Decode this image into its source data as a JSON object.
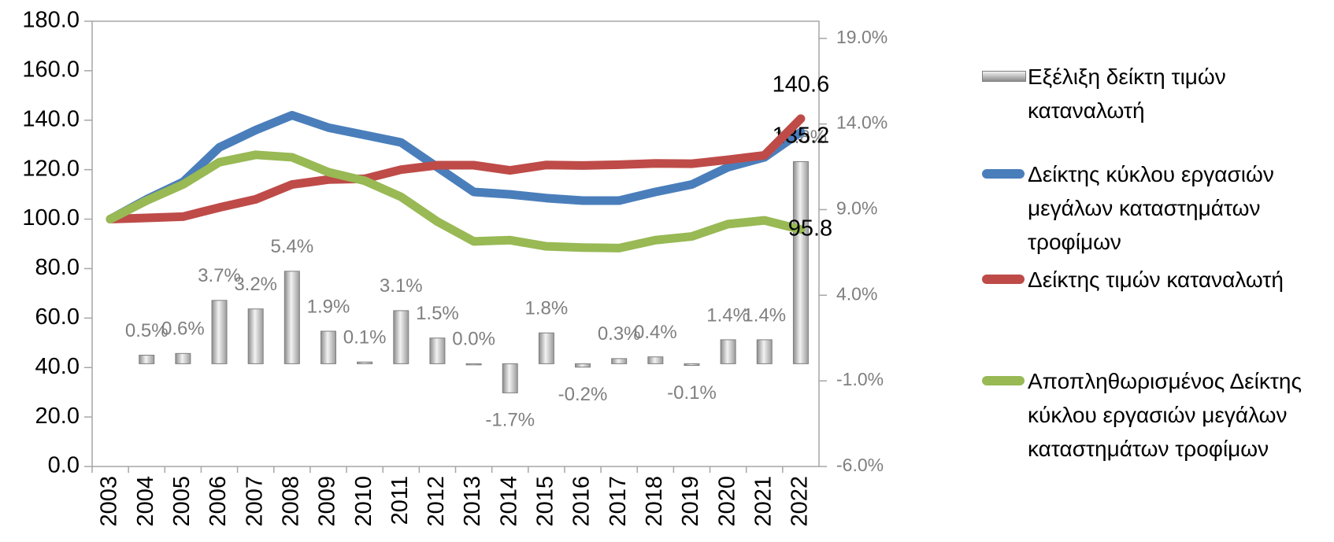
{
  "chart_data": {
    "type": "combo",
    "categories": [
      "2003",
      "2004",
      "2005",
      "2006",
      "2007",
      "2008",
      "2009",
      "2010",
      "2011",
      "2012",
      "2013",
      "2014",
      "2015",
      "2016",
      "2017",
      "2018",
      "2019",
      "2020",
      "2021",
      "2022"
    ],
    "ylim": [
      0,
      180
    ],
    "yticks": [
      {
        "value": 0,
        "label": "0.0"
      },
      {
        "value": 20,
        "label": "20.0"
      },
      {
        "value": 40,
        "label": "40.0"
      },
      {
        "value": 60,
        "label": "60.0"
      },
      {
        "value": 80,
        "label": "80.0"
      },
      {
        "value": 100,
        "label": "100.0"
      },
      {
        "value": 120,
        "label": "120.0"
      },
      {
        "value": 140,
        "label": "140.0"
      },
      {
        "value": 160,
        "label": "160.0"
      },
      {
        "value": 180,
        "label": "180.0"
      }
    ],
    "y2lim": [
      -6,
      20
    ],
    "y2ticks": [
      {
        "value": -6,
        "label": "-6.0%"
      },
      {
        "value": -1,
        "label": "-1.0%"
      },
      {
        "value": 4,
        "label": "4.0%"
      },
      {
        "value": 9,
        "label": "9.0%"
      },
      {
        "value": 14,
        "label": "14.0%"
      },
      {
        "value": 19,
        "label": "19.0%"
      }
    ],
    "grid": false,
    "legend": "right",
    "series": [
      {
        "name": "Εξέλιξη δείκτη τιμών καταναλωτή",
        "type": "bar",
        "axis": "y2",
        "color": "#b8b8b8",
        "values": [
          null,
          0.5,
          0.6,
          3.7,
          3.2,
          5.4,
          1.9,
          0.1,
          3.1,
          1.5,
          0.0,
          -1.7,
          1.8,
          -0.2,
          0.3,
          0.4,
          -0.1,
          1.4,
          1.4,
          11.8
        ],
        "value_labels": [
          null,
          "0.5%",
          "0.6%",
          "3.7%",
          "3.2%",
          "5.4%",
          "1.9%",
          "0.1%",
          "3.1%",
          "1.5%",
          "0.0%",
          "-1.7%",
          "1.8%",
          "-0.2%",
          "0.3%",
          "0.4%",
          "-0.1%",
          "1.4%",
          "1.4%",
          "11.8%"
        ]
      },
      {
        "name": "Δείκτης κύκλου εργασιών μεγάλων καταστημάτων τροφίμων",
        "type": "line",
        "color": "#4a7ebb",
        "values": [
          100,
          108,
          115,
          129,
          136,
          142,
          137,
          134,
          131,
          121,
          111,
          110,
          108.5,
          107.5,
          107.5,
          111,
          114,
          121,
          125,
          135.2
        ]
      },
      {
        "name": "Δείκτης τιμών καταναλωτή",
        "type": "line",
        "color": "#be4b48",
        "values": [
          100,
          100.5,
          101,
          104.7,
          108,
          114,
          116,
          116.3,
          120,
          121.8,
          121.8,
          119.7,
          121.9,
          121.7,
          122,
          122.5,
          122.4,
          124,
          125.8,
          140.6
        ]
      },
      {
        "name": "Αποπληθωρισμένος Δείκτης κύκλου εργασιών μεγάλων καταστημάτων τροφίμων",
        "type": "line",
        "color": "#98b954",
        "values": [
          100,
          107.5,
          114,
          123,
          126,
          125,
          119,
          115.5,
          109,
          99,
          91,
          91.5,
          89,
          88.5,
          88.3,
          91.5,
          93,
          98,
          99.5,
          95.8
        ]
      }
    ]
  }
}
